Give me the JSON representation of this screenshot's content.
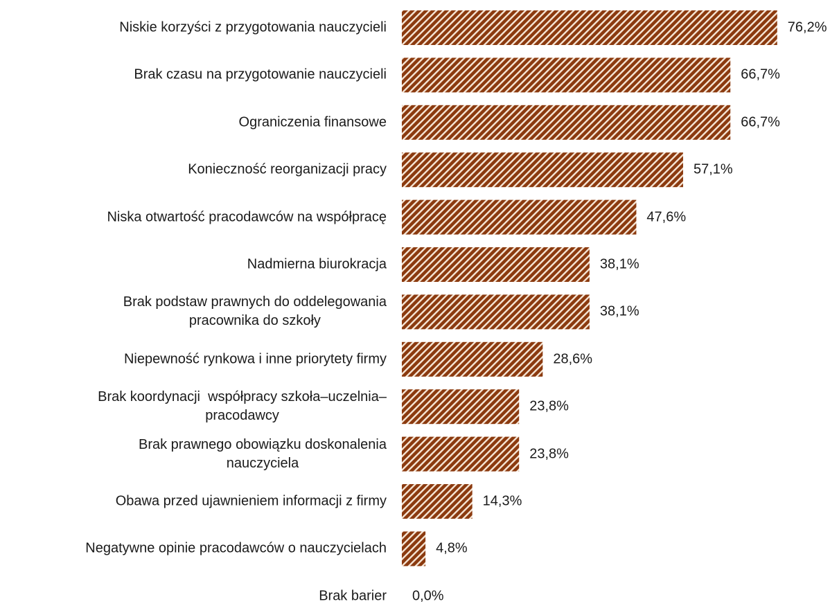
{
  "chart_data": {
    "type": "bar",
    "orientation": "horizontal",
    "categories": [
      "Niskie korzyści z przygotowania nauczycieli",
      "Brak czasu na przygotowanie nauczycieli",
      "Ograniczenia finansowe",
      "Konieczność reorganizacji pracy",
      "Niska otwartość pracodawców na współpracę",
      "Nadmierna biurokracja",
      "Brak podstaw prawnych do oddelegowania\npracownika do szkoły",
      "Niepewność rynkowa i inne priorytety firmy",
      "Brak koordynacji  współpracy szkoła–uczelnia–\npracodawcy",
      "Brak prawnego obowiązku doskonalenia\nnauczyciela",
      "Obawa przed ujawnieniem informacji z firmy",
      "Negatywne opinie pracodawców o nauczycielach",
      "Brak barier"
    ],
    "values": [
      76.2,
      66.7,
      66.7,
      57.1,
      47.6,
      38.1,
      38.1,
      28.6,
      23.8,
      23.8,
      14.3,
      4.8,
      0.0
    ],
    "value_labels": [
      "76,2%",
      "66,7%",
      "66,7%",
      "57,1%",
      "47,6%",
      "38,1%",
      "38,1%",
      "28,6%",
      "23,8%",
      "23,8%",
      "14,3%",
      "4,8%",
      "0,0%"
    ],
    "color": "#8b3a0f",
    "pattern": "diagonal-hatch"
  }
}
